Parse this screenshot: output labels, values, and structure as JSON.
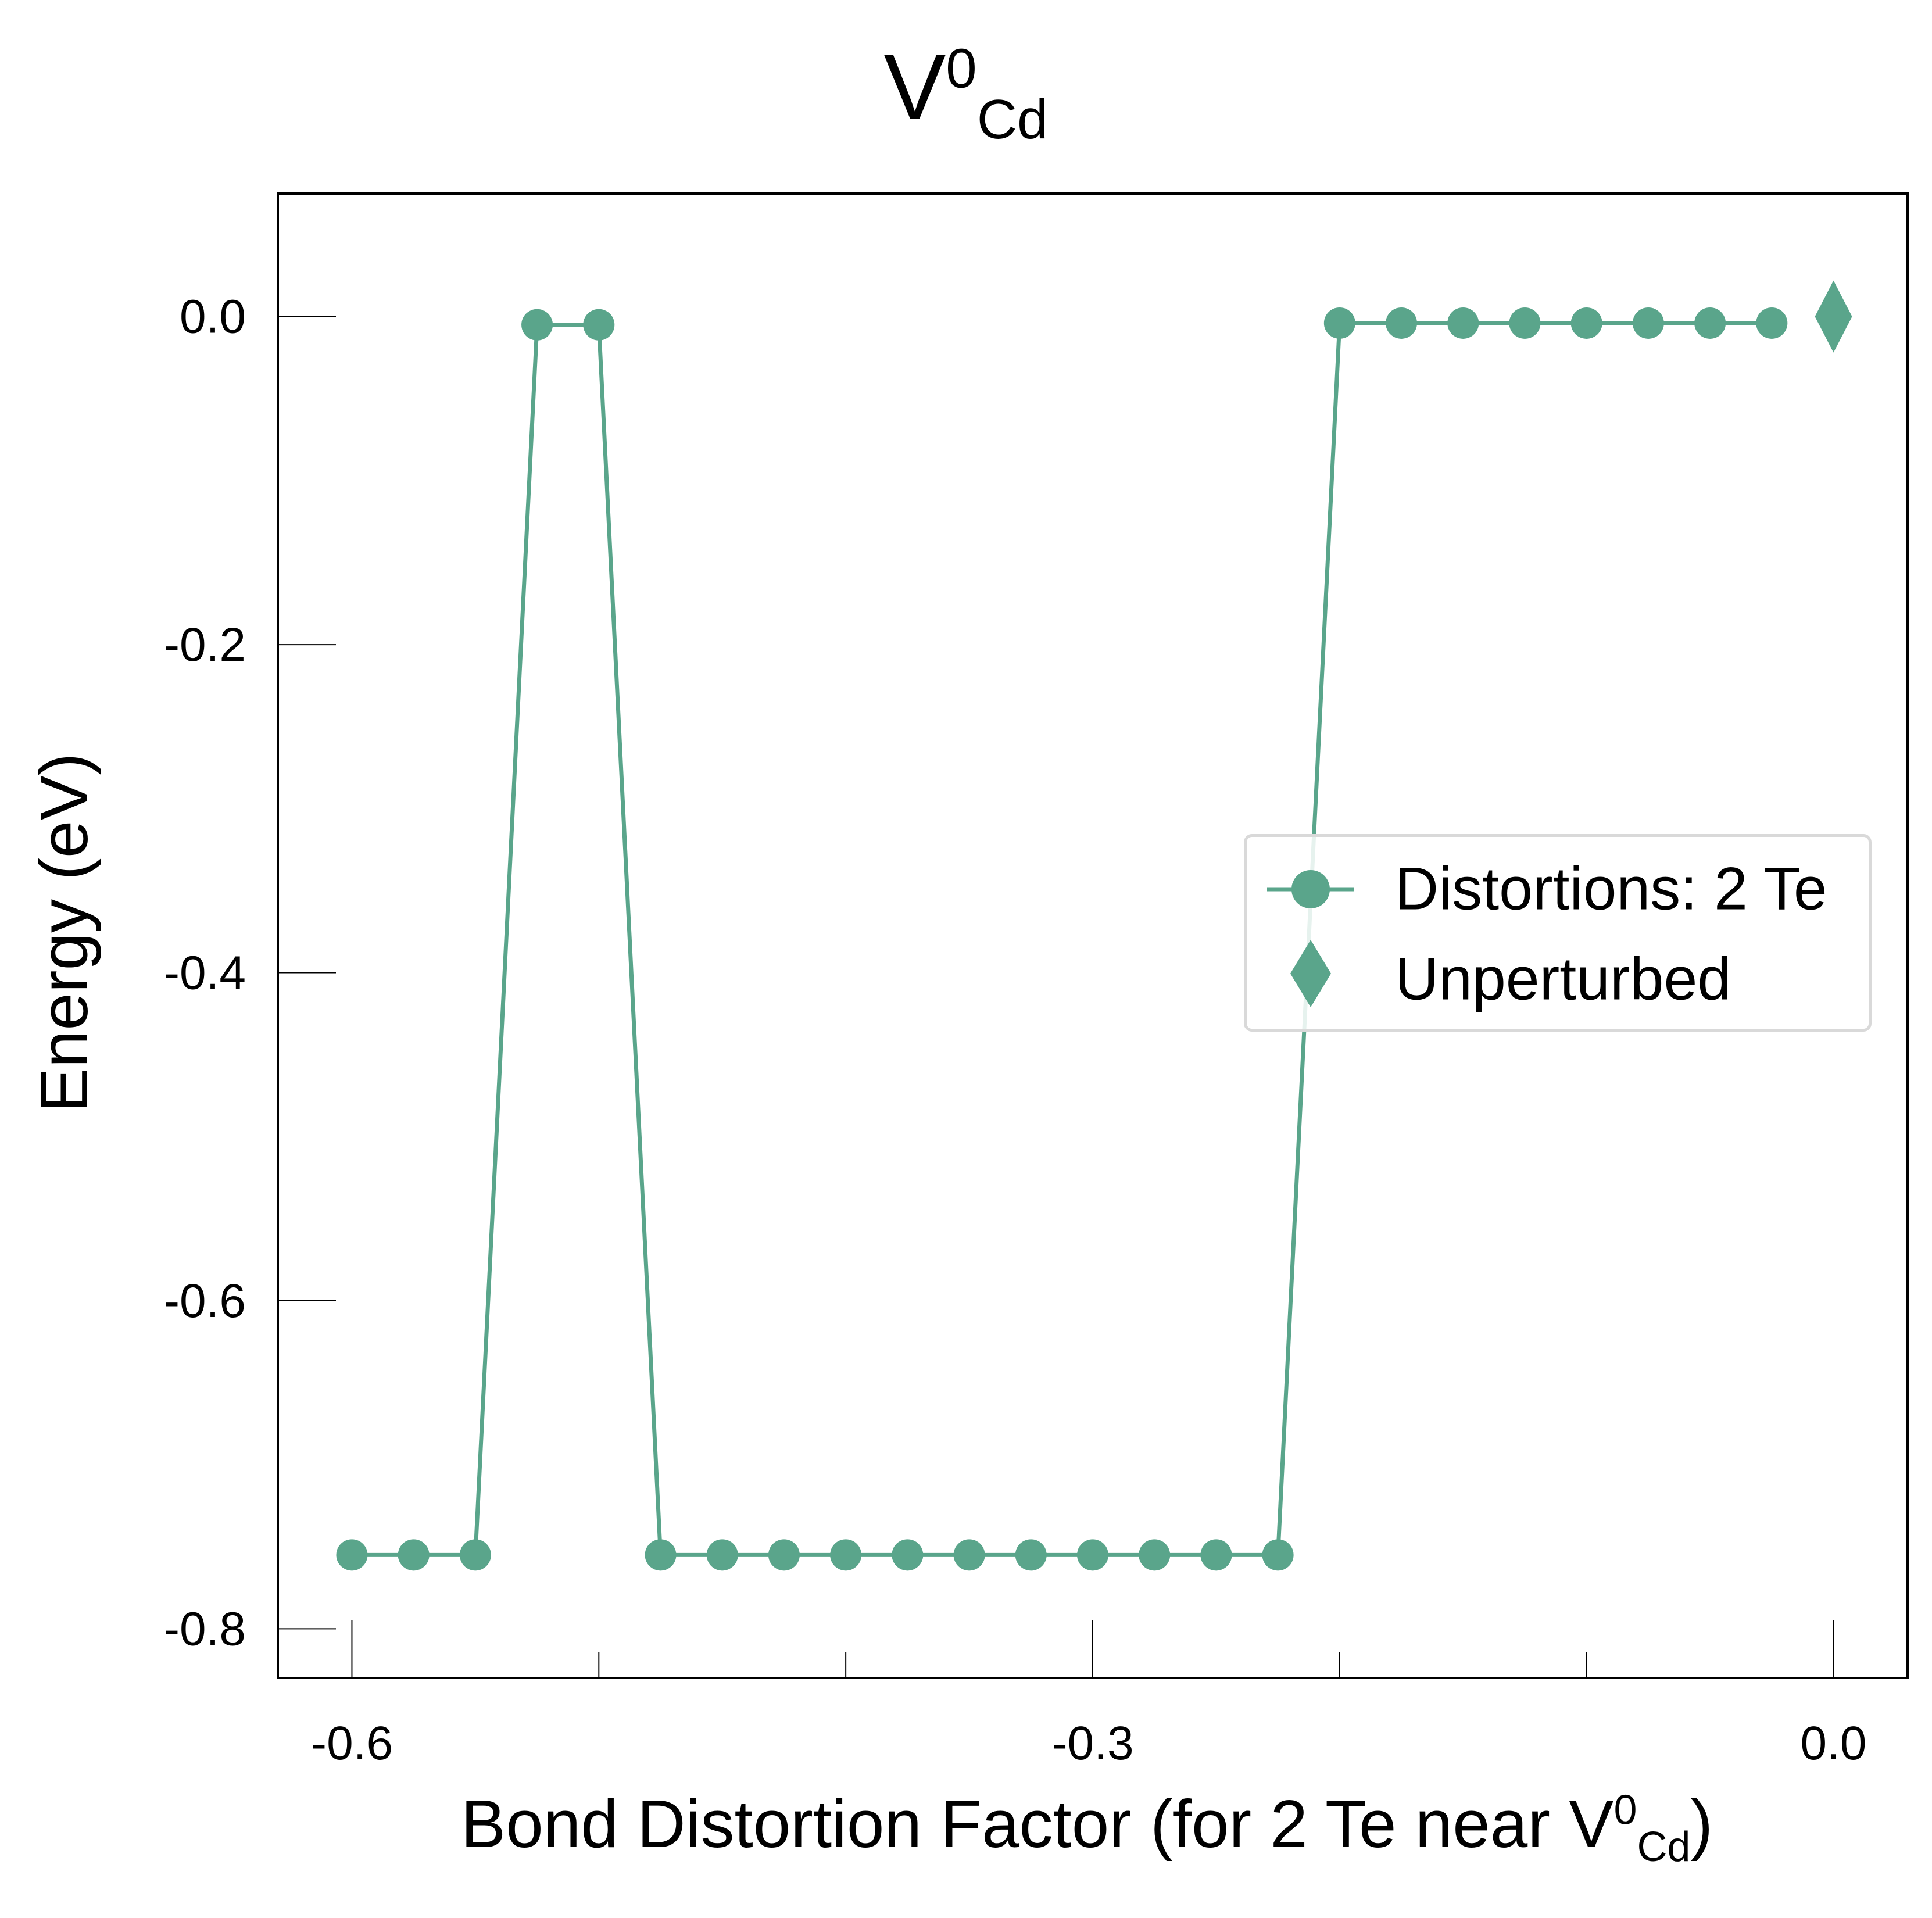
{
  "title": {
    "base": "V",
    "sup": "0",
    "sub": "Cd"
  },
  "xlabel": {
    "prefix": "Bond Distortion Factor (for 2 Te near V",
    "sup": "0",
    "sub": "Cd",
    "suffix": ")"
  },
  "ylabel": "Energy (eV)",
  "legend": {
    "items": [
      {
        "label": "Distortions: 2 Te",
        "marker": "circle-line"
      },
      {
        "label": "Unperturbed",
        "marker": "diamond"
      }
    ]
  },
  "colors": {
    "series": "#5aa58b",
    "axis": "#000000",
    "legend_border": "#d9d9d9"
  },
  "chart_data": {
    "type": "line",
    "title": "V_Cd^0",
    "xlabel": "Bond Distortion Factor (for 2 Te near V_Cd^0)",
    "ylabel": "Energy (eV)",
    "xlim": [
      -0.63,
      0.03
    ],
    "ylim": [
      -0.83,
      0.075
    ],
    "x_ticks": [
      -0.6,
      -0.3,
      0.0
    ],
    "x_tick_labels": [
      "-0.6",
      "-0.3",
      "0.0"
    ],
    "x_minor_ticks": [
      -0.5,
      -0.4,
      -0.2,
      -0.1
    ],
    "y_ticks": [
      0.0,
      -0.2,
      -0.4,
      -0.6,
      -0.8
    ],
    "y_tick_labels": [
      "0.0",
      "-0.2",
      "-0.4",
      "-0.6",
      "-0.8"
    ],
    "grid": false,
    "legend_position": "center-right",
    "series": [
      {
        "name": "Distortions: 2 Te",
        "marker": "circle",
        "x": [
          -0.6,
          -0.575,
          -0.55,
          -0.525,
          -0.5,
          -0.475,
          -0.45,
          -0.425,
          -0.4,
          -0.375,
          -0.35,
          -0.325,
          -0.3,
          -0.275,
          -0.25,
          -0.225,
          -0.2,
          -0.175,
          -0.15,
          -0.125,
          -0.1,
          -0.075,
          -0.05,
          -0.025
        ],
        "y": [
          -0.755,
          -0.755,
          -0.755,
          -0.005,
          -0.005,
          -0.755,
          -0.755,
          -0.755,
          -0.755,
          -0.755,
          -0.755,
          -0.755,
          -0.755,
          -0.755,
          -0.755,
          -0.755,
          -0.004,
          -0.004,
          -0.004,
          -0.004,
          -0.004,
          -0.004,
          -0.004,
          -0.004
        ]
      },
      {
        "name": "Unperturbed",
        "marker": "diamond",
        "x": [
          0.0
        ],
        "y": [
          0.0
        ]
      }
    ]
  }
}
